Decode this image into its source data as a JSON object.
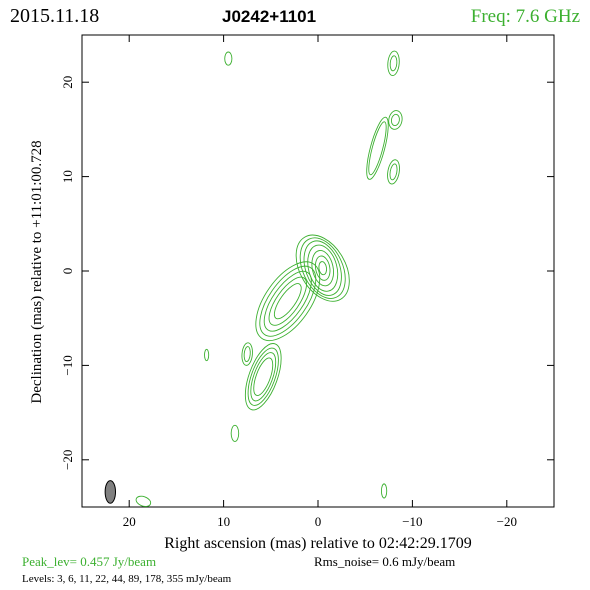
{
  "header": {
    "date": "2015.11.18",
    "source": "J0242+1101",
    "freq": "Freq: 7.6 GHz"
  },
  "axes": {
    "xlabel": "Right ascension (mas) relative to 02:42:29.1709",
    "ylabel": "Declination (mas) relative to +11:01:00.728",
    "xlim": [
      25,
      -25
    ],
    "ylim": [
      -25,
      25
    ],
    "xticks": [
      20,
      10,
      0,
      -10,
      -20
    ],
    "yticks": [
      -20,
      -10,
      0,
      10,
      20
    ],
    "xtick_labels": [
      "20",
      "10",
      "0",
      "−10",
      "−20"
    ],
    "ytick_labels": [
      "−20",
      "−10",
      "0",
      "10",
      "20"
    ]
  },
  "footer": {
    "peak": "Peak_lev=  0.457 Jy/beam",
    "rms": "Rms_noise=  0.6 mJy/beam",
    "levels": "Levels:  3,  6,  11,  22,  44,  89, 178, 355 mJy/beam"
  },
  "colors": {
    "contour": "#3cb030",
    "header_freq": "#3cb030",
    "peak_text": "#3cb030",
    "beam_fill": "#808080",
    "text": "#000000"
  },
  "contour_data": {
    "type": "contour_map",
    "units": "mas",
    "components": [
      {
        "name": "core",
        "x": -0.5,
        "y": 0.3,
        "levels": [
          [
            2.4,
            3.8,
            30
          ],
          [
            2.1,
            3.4,
            25
          ],
          [
            1.8,
            3.0,
            20
          ],
          [
            1.5,
            2.5,
            15
          ],
          [
            1.1,
            1.9,
            12
          ],
          [
            0.75,
            1.3,
            10
          ],
          [
            0.4,
            0.7,
            8
          ]
        ]
      },
      {
        "name": "inner-jet",
        "x": 3.2,
        "y": -3.2,
        "levels": [
          [
            4.8,
            2.4,
            55
          ],
          [
            4.3,
            2.0,
            55
          ],
          [
            3.7,
            1.6,
            55
          ],
          [
            3.0,
            1.2,
            55
          ],
          [
            2.2,
            0.8,
            55
          ]
        ]
      },
      {
        "name": "sw-knot",
        "x": 5.8,
        "y": -11.2,
        "levels": [
          [
            3.7,
            1.5,
            70
          ],
          [
            3.2,
            1.25,
            70
          ],
          [
            2.7,
            1.0,
            70
          ],
          [
            2.1,
            0.75,
            70
          ]
        ]
      },
      {
        "name": "sw-knot-2",
        "x": 7.5,
        "y": -8.8,
        "levels": [
          [
            1.2,
            0.55,
            85
          ],
          [
            0.8,
            0.32,
            85
          ]
        ]
      },
      {
        "name": "ne-jet",
        "x": -6.3,
        "y": 13.0,
        "levels": [
          [
            3.4,
            0.75,
            75
          ],
          [
            2.9,
            0.55,
            75
          ]
        ]
      },
      {
        "name": "ne-knot-1",
        "x": -8.2,
        "y": 16.0,
        "levels": [
          [
            1.0,
            0.7,
            80
          ],
          [
            0.6,
            0.42,
            80
          ]
        ]
      },
      {
        "name": "ne-knot-2",
        "x": -8.0,
        "y": 10.5,
        "levels": [
          [
            1.3,
            0.6,
            80
          ],
          [
            0.85,
            0.35,
            80
          ]
        ]
      },
      {
        "name": "ne-knot-3",
        "x": -8.0,
        "y": 22.0,
        "levels": [
          [
            1.3,
            0.6,
            85
          ],
          [
            0.8,
            0.35,
            85
          ]
        ]
      },
      {
        "name": "noise-1",
        "x": 9.5,
        "y": 22.5,
        "levels": [
          [
            0.7,
            0.38,
            90
          ]
        ]
      },
      {
        "name": "noise-2",
        "x": 11.8,
        "y": -8.9,
        "levels": [
          [
            0.6,
            0.22,
            90
          ]
        ]
      },
      {
        "name": "noise-3",
        "x": 8.8,
        "y": -17.2,
        "levels": [
          [
            0.85,
            0.4,
            90
          ]
        ]
      },
      {
        "name": "noise-4",
        "x": -7.0,
        "y": -23.3,
        "levels": [
          [
            0.75,
            0.28,
            90
          ]
        ]
      },
      {
        "name": "noise-5",
        "x": 18.5,
        "y": -24.4,
        "levels": [
          [
            0.8,
            0.5,
            160
          ]
        ]
      }
    ],
    "beam": {
      "x": 22.0,
      "y": -23.4,
      "major": 2.4,
      "minor": 1.1,
      "pa_deg": 0
    }
  }
}
